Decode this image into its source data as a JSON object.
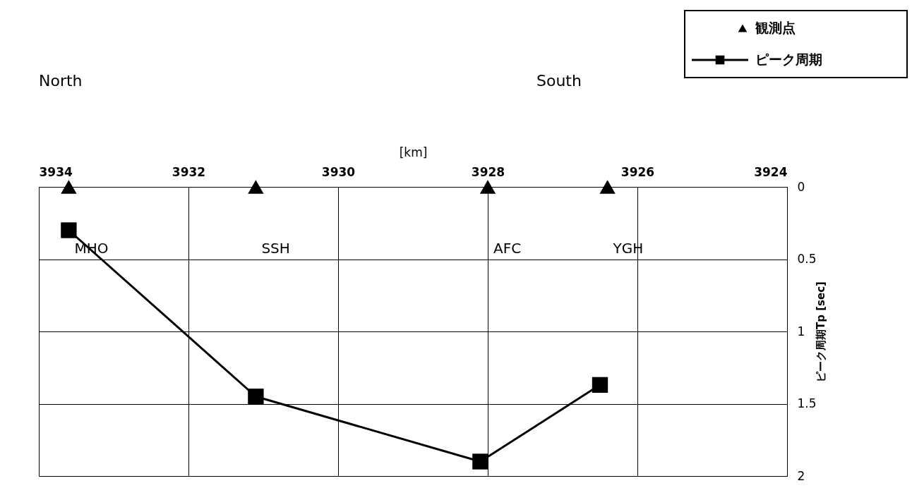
{
  "chart_data": {
    "type": "line",
    "xlabel": "[km]",
    "ylabel": "ピーク周期Tp [sec]",
    "xlim": [
      3934,
      3924
    ],
    "xticks": [
      3934,
      3932,
      3930,
      3928,
      3926,
      3924
    ],
    "ylim": [
      2,
      0
    ],
    "yticks": [
      0,
      0.5,
      1,
      1.5,
      2
    ],
    "grid": true,
    "legend": "top right",
    "series": [
      {
        "name": "観測点",
        "type": "scatter",
        "marker": "triangle",
        "color": "#000000",
        "x": [
          3933.6,
          3931.1,
          3928.0,
          3926.4
        ],
        "values": [
          0,
          0,
          0,
          0
        ]
      },
      {
        "name": "ピーク周期",
        "marker": "square",
        "color": "#000000",
        "x": [
          3933.6,
          3931.1,
          3928.1,
          3926.5
        ],
        "values": [
          0.3,
          1.45,
          1.9,
          1.37
        ]
      }
    ],
    "annotations": [
      "North",
      "South",
      "MHO",
      "SSH",
      "AFC",
      "YGH"
    ]
  }
}
